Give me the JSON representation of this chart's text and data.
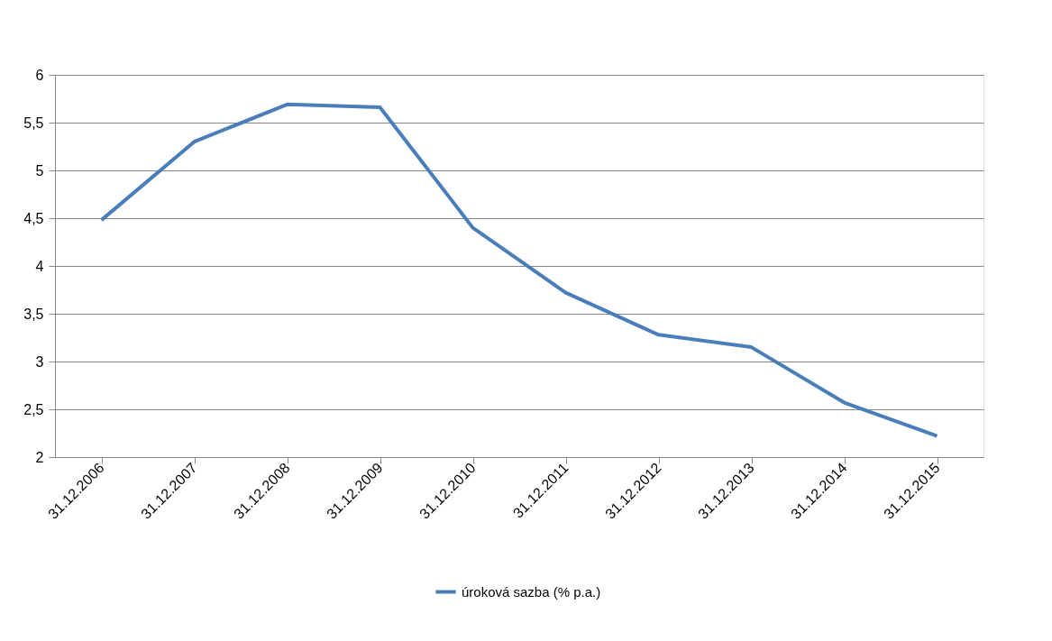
{
  "chart_data": {
    "type": "line",
    "categories": [
      "31.12.2006",
      "31.12.2007",
      "31.12.2008",
      "31.12.2009",
      "31.12.2010",
      "31.12.2011",
      "31.12.2012",
      "31.12.2013",
      "31.12.2014",
      "31.12.2015"
    ],
    "series": [
      {
        "name": "úroková sazba (% p.a.)",
        "color": "#4a7ebb",
        "values": [
          4.48,
          5.3,
          5.69,
          5.66,
          4.4,
          3.72,
          3.28,
          3.15,
          2.57,
          2.22
        ]
      }
    ],
    "ylim": [
      2,
      6
    ],
    "yticks": [
      2,
      {
        "value": 2.5,
        "label": "2,5"
      },
      3,
      {
        "value": 3.5,
        "label": "3,5"
      },
      4,
      {
        "value": 4.5,
        "label": "4,5"
      },
      5,
      {
        "value": 5.5,
        "label": "5,5"
      },
      6
    ],
    "grid": "y",
    "legend": "bottom",
    "marker": "none",
    "line_style": "solid"
  }
}
